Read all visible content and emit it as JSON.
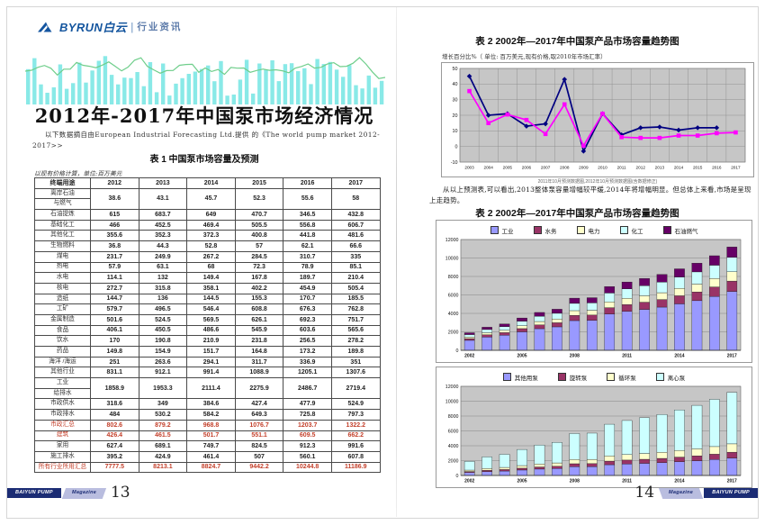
{
  "page_left": {
    "logo": {
      "brand": "BYRUN白云",
      "separator": "|",
      "tagline": "行业资讯"
    },
    "title": "2012年-2017年中国泵市场经济情况",
    "source_note": "以下数据摘自由European Industrial Forecasting Ltd.提供 的《The world pump market 2012-2017>>",
    "table1": {
      "caption": "表 1  中国泵市场容量及预测",
      "unit_note": "以现有价格计算，单位:百万美元",
      "columns": [
        "终端用途",
        "2012",
        "2013",
        "2014",
        "2015",
        "2016",
        "2017"
      ],
      "rows": [
        {
          "label": [
            "离岸石油",
            "与燃气"
          ],
          "red": false,
          "values": [
            "38.6",
            "43.1",
            "45.7",
            "52.3",
            "55.6",
            "58"
          ]
        },
        {
          "label": [
            "石油提炼"
          ],
          "red": false,
          "values": [
            "615",
            "683.7",
            "649",
            "470.7",
            "346.5",
            "432.8"
          ]
        },
        {
          "label": [
            "基础化工"
          ],
          "red": false,
          "values": [
            "466",
            "452.5",
            "469.4",
            "505.5",
            "556.8",
            "606.7"
          ]
        },
        {
          "label": [
            "其他化工"
          ],
          "red": false,
          "values": [
            "355.6",
            "352.3",
            "372.3",
            "400.8",
            "441.8",
            "481.6"
          ]
        },
        {
          "label": [
            "生物燃料"
          ],
          "red": false,
          "values": [
            "36.8",
            "44.3",
            "52.8",
            "57",
            "62.1",
            "66.6"
          ]
        },
        {
          "label": [
            "煤电"
          ],
          "red": false,
          "values": [
            "231.7",
            "249.9",
            "267.2",
            "284.5",
            "310.7",
            "335"
          ]
        },
        {
          "label": [
            "热电"
          ],
          "red": false,
          "values": [
            "57.9",
            "63.1",
            "68",
            "72.3",
            "78.9",
            "85.1"
          ]
        },
        {
          "label": [
            "水电"
          ],
          "red": false,
          "values": [
            "114.1",
            "132",
            "149.4",
            "167.8",
            "189.7",
            "210.4"
          ]
        },
        {
          "label": [
            "核电"
          ],
          "red": false,
          "values": [
            "272.7",
            "315.8",
            "358.1",
            "402.2",
            "454.9",
            "505.4"
          ]
        },
        {
          "label": [
            "造纸"
          ],
          "red": false,
          "values": [
            "144.7",
            "136",
            "144.5",
            "155.3",
            "170.7",
            "185.5"
          ]
        },
        {
          "label": [
            "工矿"
          ],
          "red": false,
          "values": [
            "579.7",
            "496.5",
            "546.4",
            "608.8",
            "676.3",
            "762.8"
          ]
        },
        {
          "label": [
            "金属制造"
          ],
          "red": false,
          "values": [
            "501.6",
            "524.5",
            "569.5",
            "626.1",
            "692.3",
            "751.7"
          ]
        },
        {
          "label": [
            "食品"
          ],
          "red": false,
          "values": [
            "406.1",
            "450.5",
            "486.6",
            "545.9",
            "603.6",
            "565.6"
          ]
        },
        {
          "label": [
            "饮水"
          ],
          "red": false,
          "values": [
            "170",
            "190.8",
            "210.9",
            "231.8",
            "256.5",
            "278.2"
          ]
        },
        {
          "label": [
            "药品"
          ],
          "red": false,
          "values": [
            "149.8",
            "154.9",
            "151.7",
            "164.8",
            "173.2",
            "189.8"
          ]
        },
        {
          "label": [
            "海洋 /海运"
          ],
          "red": false,
          "values": [
            "251",
            "263.6",
            "294.1",
            "311.7",
            "336.9",
            "351"
          ]
        },
        {
          "label": [
            "其他行业"
          ],
          "red": false,
          "values": [
            "831.1",
            "912.1",
            "991.4",
            "1088.9",
            "1205.1",
            "1307.6"
          ]
        },
        {
          "label": [
            "工业",
            "给排水"
          ],
          "red": false,
          "values": [
            "1858.9",
            "1953.3",
            "2111.4",
            "2275.9",
            "2486.7",
            "2719.4"
          ]
        },
        {
          "label": [
            "市政供水"
          ],
          "red": false,
          "values": [
            "318.6",
            "349",
            "384.6",
            "427.4",
            "477.9",
            "524.9"
          ]
        },
        {
          "label": [
            "市政排水"
          ],
          "red": false,
          "values": [
            "484",
            "530.2",
            "584.2",
            "649.3",
            "725.8",
            "797.3"
          ]
        },
        {
          "label": [
            "市政汇总"
          ],
          "red": true,
          "values": [
            "802.6",
            "879.2",
            "968.8",
            "1076.7",
            "1203.7",
            "1322.2"
          ]
        },
        {
          "label": [
            "建筑"
          ],
          "red": true,
          "values": [
            "426.4",
            "461.5",
            "501.7",
            "551.1",
            "609.5",
            "662.2"
          ]
        },
        {
          "label": [
            "家用"
          ],
          "red": false,
          "values": [
            "627.4",
            "689.1",
            "749.7",
            "824.5",
            "912.3",
            "991.6"
          ]
        },
        {
          "label": [
            "施工排水"
          ],
          "red": false,
          "values": [
            "395.2",
            "424.9",
            "461.4",
            "507",
            "560.1",
            "607.8"
          ]
        },
        {
          "label": [
            "所有行业所用汇总"
          ],
          "red": true,
          "values": [
            "7777.5",
            "8213.1",
            "8824.7",
            "9442.2",
            "10244.8",
            "11186.9"
          ]
        }
      ]
    },
    "footer": {
      "brand": "BAIYUN PUMP",
      "magazine": "Magazine",
      "page_number": "13"
    }
  },
  "page_right": {
    "chart1_title": "表 2  2002年—2017年中国泵产品市场容量趋势图",
    "chart1_note": "增长百分比%（ 单位: 百万美元,现有价格,取2010年市场汇率）",
    "chart1_caption": "2011年10月预测数据图,2012年10月预测数据图(含数据修正)",
    "analysis": "从以上预测表,可以看出,2013整体泵容量增幅较平缓,2014年将增幅明显。但总体上来看,市场是呈现上走趋势。",
    "chart2_title": "表 2  2002年—2017年中国泵产品市场容量趋势图",
    "footer": {
      "page_number": "14",
      "magazine": "Magazine",
      "brand": "BAIYUN PUMP"
    }
  },
  "chart_data": [
    {
      "type": "line",
      "title": "增长百分比% 2003-2017 预测对比",
      "x": [
        "2003",
        "2004",
        "2005",
        "2006",
        "2007",
        "2008",
        "2009",
        "2010",
        "2011",
        "2012",
        "2013",
        "2014",
        "2015",
        "2016",
        "2017"
      ],
      "ylim": [
        -10,
        50
      ],
      "yticks": [
        -10,
        0,
        10,
        20,
        30,
        40,
        50
      ],
      "grid": true,
      "plot_bg": "#c6c6c6",
      "series": [
        {
          "name": "2011年10月预测数据",
          "color": "#000080",
          "marker": "diamond",
          "values": [
            45,
            20,
            21,
            13,
            14.5,
            43,
            -3,
            21,
            7.5,
            12,
            12.5,
            10.5,
            12,
            12,
            null
          ]
        },
        {
          "name": "2012年10月预测数据(含数据修正)",
          "color": "#FF00FF",
          "marker": "square",
          "values": [
            35.5,
            15,
            20.5,
            17,
            8,
            27,
            0.5,
            21,
            6,
            5.5,
            5.5,
            7,
            7,
            8.5,
            9
          ]
        }
      ]
    },
    {
      "type": "bar",
      "stacked": true,
      "title": "2002年—2017年中国泵产品市场容量(按行业)",
      "categories": [
        "2002",
        "2003",
        "2004",
        "2005",
        "2006",
        "2007",
        "2008",
        "2009",
        "2010",
        "2011",
        "2012",
        "2013",
        "2014",
        "2015",
        "2016",
        "2017"
      ],
      "xtick_labels": [
        "2002",
        "2005",
        "2008",
        "2011",
        "2014",
        "2017"
      ],
      "ylim": [
        0,
        12000
      ],
      "yticks": [
        0,
        2000,
        4000,
        6000,
        8000,
        10000,
        12000
      ],
      "plot_bg": "#c6c6c6",
      "legend_position": "top",
      "series": [
        {
          "name": "工业",
          "color": "#9999FF",
          "values": [
            1080,
            1430,
            1630,
            2000,
            2340,
            2540,
            3220,
            3250,
            3930,
            4220,
            4430,
            4680,
            5030,
            5380,
            5840,
            6380
          ]
        },
        {
          "name": "水务",
          "color": "#993366",
          "values": [
            190,
            250,
            285,
            350,
            410,
            445,
            565,
            570,
            690,
            740,
            780,
            820,
            880,
            945,
            1025,
            1120
          ]
        },
        {
          "name": "电力",
          "color": "#FFFFCC",
          "values": [
            170,
            225,
            255,
            315,
            370,
            400,
            510,
            515,
            620,
            665,
            700,
            740,
            795,
            850,
            920,
            1005
          ]
        },
        {
          "name": "化工",
          "color": "#CCFFFF",
          "values": [
            265,
            350,
            400,
            490,
            575,
            625,
            790,
            800,
            965,
            1035,
            1090,
            1150,
            1235,
            1322,
            1434,
            1566
          ]
        },
        {
          "name": "石油燃气",
          "color": "#660066",
          "values": [
            195,
            245,
            280,
            345,
            405,
            440,
            565,
            565,
            695,
            740,
            777,
            823,
            885,
            945,
            1026,
            1116
          ]
        }
      ]
    },
    {
      "type": "bar",
      "stacked": true,
      "title": "2002年—2017年中国泵产品市场容量(按泵类型)",
      "categories": [
        "2002",
        "2003",
        "2004",
        "2005",
        "2006",
        "2007",
        "2008",
        "2009",
        "2010",
        "2011",
        "2012",
        "2013",
        "2014",
        "2015",
        "2016",
        "2017"
      ],
      "xtick_labels": [
        "2002",
        "2005",
        "2008",
        "2011",
        "2014",
        "2017"
      ],
      "ylim": [
        0,
        12000
      ],
      "yticks": [
        0,
        2000,
        4000,
        6000,
        8000,
        10000,
        12000
      ],
      "plot_bg": "#c6c6c6",
      "legend_position": "top",
      "series": [
        {
          "name": "其他用泵",
          "color": "#9999FF",
          "values": [
            400,
            525,
            600,
            735,
            860,
            935,
            1185,
            1195,
            1450,
            1555,
            1635,
            1725,
            1855,
            1985,
            2150,
            2350
          ]
        },
        {
          "name": "旋转泵",
          "color": "#993366",
          "values": [
            135,
            175,
            200,
            245,
            285,
            310,
            395,
            400,
            485,
            520,
            545,
            575,
            620,
            660,
            715,
            785
          ]
        },
        {
          "name": "循环泵",
          "color": "#FFFFCC",
          "values": [
            190,
            250,
            285,
            350,
            410,
            445,
            565,
            570,
            690,
            740,
            780,
            820,
            880,
            945,
            1025,
            1120
          ]
        },
        {
          "name": "离心泵",
          "color": "#CCFFFF",
          "values": [
            1175,
            1550,
            1765,
            2170,
            2545,
            2760,
            3505,
            3535,
            4275,
            4585,
            4817,
            5093,
            5470,
            5852,
            6355,
            6932
          ]
        }
      ]
    }
  ]
}
